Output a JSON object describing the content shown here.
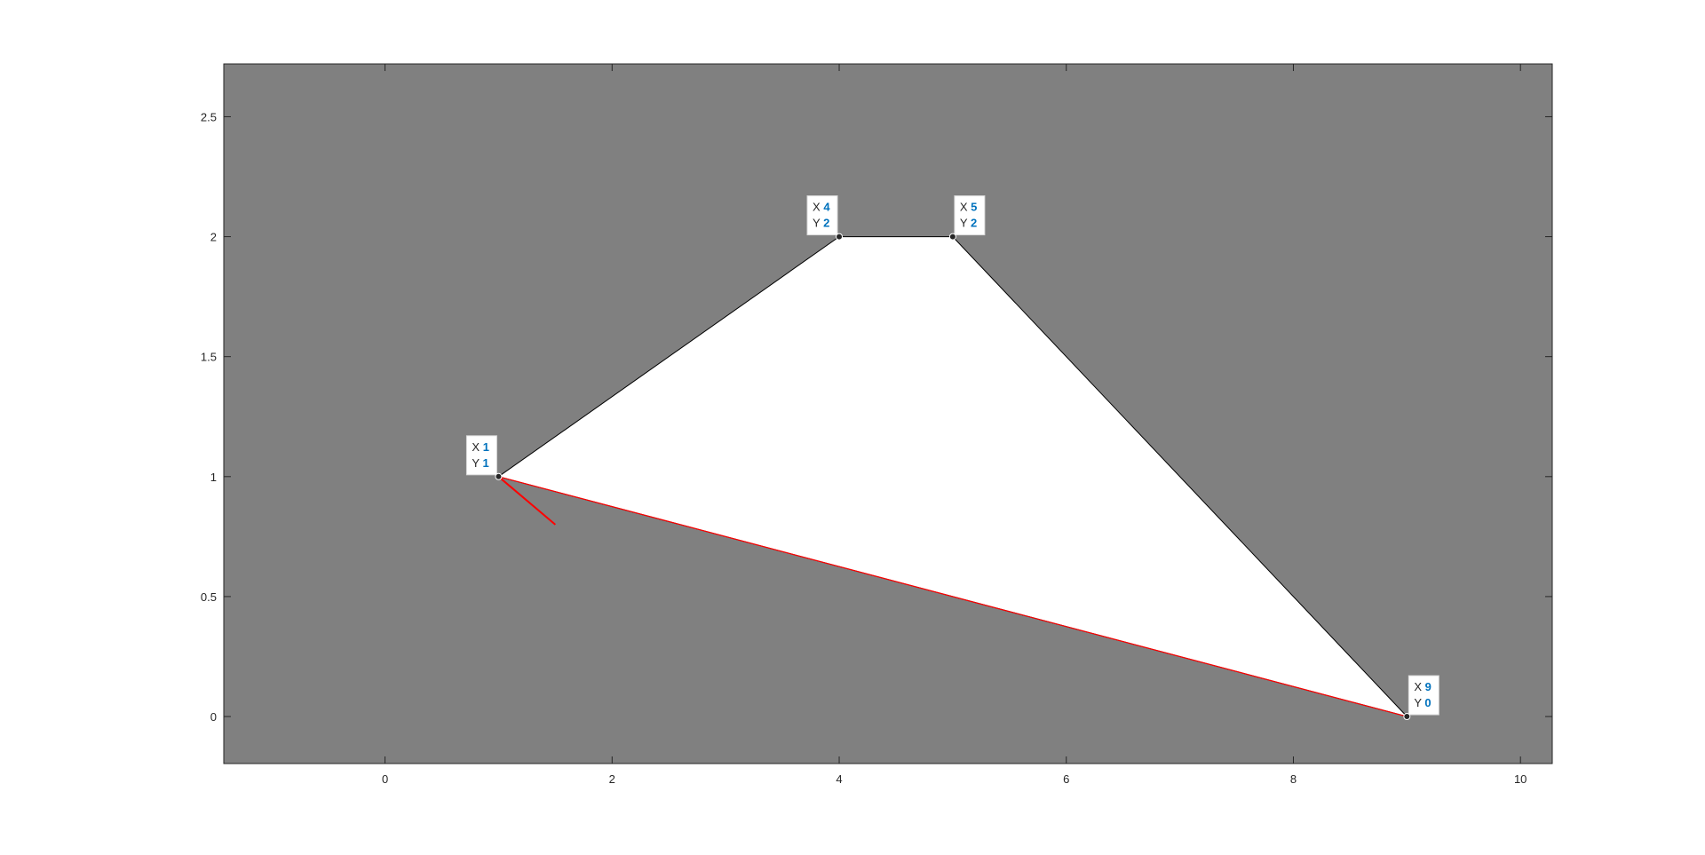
{
  "chart_data": {
    "type": "area",
    "title": "",
    "xlabel": "",
    "ylabel": "",
    "xlim": [
      -1.42,
      10.28
    ],
    "ylim": [
      -0.196,
      2.72
    ],
    "x_ticks": [
      0,
      2,
      4,
      6,
      8,
      10
    ],
    "y_ticks": [
      0,
      0.5,
      1,
      1.5,
      2,
      2.5
    ],
    "x_tick_labels": [
      "0",
      "2",
      "4",
      "6",
      "8",
      "10"
    ],
    "y_tick_labels": [
      "0",
      "0.5",
      "1",
      "1.5",
      "2",
      "2.5"
    ],
    "grid": false,
    "axes_background": "#808080",
    "polygon": {
      "fill": "#ffffff",
      "edge": "#000000",
      "x": [
        1,
        4,
        5,
        9
      ],
      "y": [
        1,
        2,
        2,
        0
      ]
    },
    "red_segments": [
      {
        "x": [
          1,
          1.5
        ],
        "y": [
          1,
          0.8
        ]
      },
      {
        "x": [
          1,
          9
        ],
        "y": [
          1,
          0
        ]
      }
    ],
    "red_color": "#ff0000",
    "datatips": [
      {
        "x": 1,
        "y": 1,
        "x_label": "X",
        "y_label": "Y",
        "x_text": "1",
        "y_text": "1",
        "placement": "top-left"
      },
      {
        "x": 4,
        "y": 2,
        "x_label": "X",
        "y_label": "Y",
        "x_text": "4",
        "y_text": "2",
        "placement": "top-left"
      },
      {
        "x": 5,
        "y": 2,
        "x_label": "X",
        "y_label": "Y",
        "x_text": "5",
        "y_text": "2",
        "placement": "top-right"
      },
      {
        "x": 9,
        "y": 0,
        "x_label": "X",
        "y_label": "Y",
        "x_text": "9",
        "y_text": "0",
        "placement": "top-right"
      }
    ],
    "datatip_value_color": "#0072BD"
  }
}
